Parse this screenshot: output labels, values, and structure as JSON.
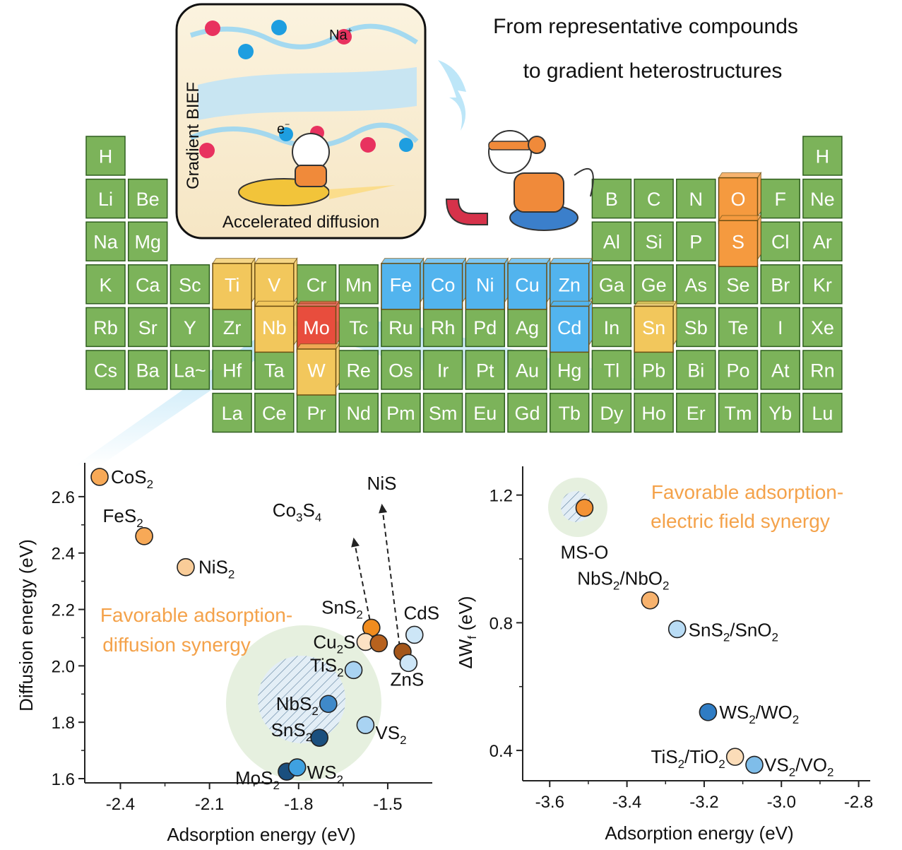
{
  "headline": {
    "line1": "From representative compounds",
    "line2": "to gradient heterostructures"
  },
  "inset": {
    "vertical_label": "Gradient BIEF",
    "bottom_label": "Accelerated diffusion",
    "ion_label": "Na",
    "ion_charge": "+",
    "electron_label": "e",
    "electron_charge": "−"
  },
  "colors": {
    "cell_green": "#7cb35a",
    "cell_green_border": "#2f5e1f",
    "transition_yellow": "#f2c75c",
    "transition_blue": "#52b4ee",
    "mo_red": "#e84d3d",
    "chalcogen_orange": "#f59a3f",
    "text_orange": "#f4a24a"
  },
  "periodic_table": {
    "cells": [
      {
        "symbol": "H",
        "col": 1,
        "row": 1
      },
      {
        "symbol": "H",
        "col": 18,
        "row": 1
      },
      {
        "symbol": "Li",
        "col": 1,
        "row": 2
      },
      {
        "symbol": "Be",
        "col": 2,
        "row": 2
      },
      {
        "symbol": "B",
        "col": 13,
        "row": 2
      },
      {
        "symbol": "C",
        "col": 14,
        "row": 2
      },
      {
        "symbol": "N",
        "col": 15,
        "row": 2
      },
      {
        "symbol": "O",
        "col": 16,
        "row": 2,
        "highlight": "orange"
      },
      {
        "symbol": "F",
        "col": 17,
        "row": 2
      },
      {
        "symbol": "Ne",
        "col": 18,
        "row": 2
      },
      {
        "symbol": "Na",
        "col": 1,
        "row": 3
      },
      {
        "symbol": "Mg",
        "col": 2,
        "row": 3
      },
      {
        "symbol": "Al",
        "col": 13,
        "row": 3
      },
      {
        "symbol": "Si",
        "col": 14,
        "row": 3
      },
      {
        "symbol": "P",
        "col": 15,
        "row": 3
      },
      {
        "symbol": "S",
        "col": 16,
        "row": 3,
        "highlight": "orange"
      },
      {
        "symbol": "Cl",
        "col": 17,
        "row": 3
      },
      {
        "symbol": "Ar",
        "col": 18,
        "row": 3
      },
      {
        "symbol": "K",
        "col": 1,
        "row": 4
      },
      {
        "symbol": "Ca",
        "col": 2,
        "row": 4
      },
      {
        "symbol": "Sc",
        "col": 3,
        "row": 4
      },
      {
        "symbol": "Ti",
        "col": 4,
        "row": 4,
        "highlight": "yellow"
      },
      {
        "symbol": "V",
        "col": 5,
        "row": 4,
        "highlight": "yellow"
      },
      {
        "symbol": "Cr",
        "col": 6,
        "row": 4
      },
      {
        "symbol": "Mn",
        "col": 7,
        "row": 4
      },
      {
        "symbol": "Fe",
        "col": 8,
        "row": 4,
        "highlight": "blue"
      },
      {
        "symbol": "Co",
        "col": 9,
        "row": 4,
        "highlight": "blue"
      },
      {
        "symbol": "Ni",
        "col": 10,
        "row": 4,
        "highlight": "blue"
      },
      {
        "symbol": "Cu",
        "col": 11,
        "row": 4,
        "highlight": "blue"
      },
      {
        "symbol": "Zn",
        "col": 12,
        "row": 4,
        "highlight": "blue"
      },
      {
        "symbol": "Ga",
        "col": 13,
        "row": 4
      },
      {
        "symbol": "Ge",
        "col": 14,
        "row": 4
      },
      {
        "symbol": "As",
        "col": 15,
        "row": 4
      },
      {
        "symbol": "Se",
        "col": 16,
        "row": 4
      },
      {
        "symbol": "Br",
        "col": 17,
        "row": 4
      },
      {
        "symbol": "Kr",
        "col": 18,
        "row": 4
      },
      {
        "symbol": "Rb",
        "col": 1,
        "row": 5
      },
      {
        "symbol": "Sr",
        "col": 2,
        "row": 5
      },
      {
        "symbol": "Y",
        "col": 3,
        "row": 5
      },
      {
        "symbol": "Zr",
        "col": 4,
        "row": 5
      },
      {
        "symbol": "Nb",
        "col": 5,
        "row": 5,
        "highlight": "yellow"
      },
      {
        "symbol": "Mo",
        "col": 6,
        "row": 5,
        "highlight": "red"
      },
      {
        "symbol": "Tc",
        "col": 7,
        "row": 5
      },
      {
        "symbol": "Ru",
        "col": 8,
        "row": 5
      },
      {
        "symbol": "Rh",
        "col": 9,
        "row": 5
      },
      {
        "symbol": "Pd",
        "col": 10,
        "row": 5
      },
      {
        "symbol": "Ag",
        "col": 11,
        "row": 5
      },
      {
        "symbol": "Cd",
        "col": 12,
        "row": 5,
        "highlight": "blue"
      },
      {
        "symbol": "In",
        "col": 13,
        "row": 5
      },
      {
        "symbol": "Sn",
        "col": 14,
        "row": 5,
        "highlight": "yellow"
      },
      {
        "symbol": "Sb",
        "col": 15,
        "row": 5
      },
      {
        "symbol": "Te",
        "col": 16,
        "row": 5
      },
      {
        "symbol": "I",
        "col": 17,
        "row": 5
      },
      {
        "symbol": "Xe",
        "col": 18,
        "row": 5
      },
      {
        "symbol": "Cs",
        "col": 1,
        "row": 6
      },
      {
        "symbol": "Ba",
        "col": 2,
        "row": 6
      },
      {
        "symbol": "La~",
        "col": 3,
        "row": 6
      },
      {
        "symbol": "Hf",
        "col": 4,
        "row": 6
      },
      {
        "symbol": "Ta",
        "col": 5,
        "row": 6
      },
      {
        "symbol": "W",
        "col": 6,
        "row": 6,
        "highlight": "yellow"
      },
      {
        "symbol": "Re",
        "col": 7,
        "row": 6
      },
      {
        "symbol": "Os",
        "col": 8,
        "row": 6
      },
      {
        "symbol": "Ir",
        "col": 9,
        "row": 6
      },
      {
        "symbol": "Pt",
        "col": 10,
        "row": 6
      },
      {
        "symbol": "Au",
        "col": 11,
        "row": 6
      },
      {
        "symbol": "Hg",
        "col": 12,
        "row": 6
      },
      {
        "symbol": "Tl",
        "col": 13,
        "row": 6
      },
      {
        "symbol": "Pb",
        "col": 14,
        "row": 6
      },
      {
        "symbol": "Bi",
        "col": 15,
        "row": 6
      },
      {
        "symbol": "Po",
        "col": 16,
        "row": 6
      },
      {
        "symbol": "At",
        "col": 17,
        "row": 6
      },
      {
        "symbol": "Rn",
        "col": 18,
        "row": 6
      },
      {
        "symbol": "La",
        "col": 4,
        "row": 7
      },
      {
        "symbol": "Ce",
        "col": 5,
        "row": 7
      },
      {
        "symbol": "Pr",
        "col": 6,
        "row": 7
      },
      {
        "symbol": "Nd",
        "col": 7,
        "row": 7
      },
      {
        "symbol": "Pm",
        "col": 8,
        "row": 7
      },
      {
        "symbol": "Sm",
        "col": 9,
        "row": 7
      },
      {
        "symbol": "Eu",
        "col": 10,
        "row": 7
      },
      {
        "symbol": "Gd",
        "col": 11,
        "row": 7
      },
      {
        "symbol": "Tb",
        "col": 12,
        "row": 7
      },
      {
        "symbol": "Dy",
        "col": 13,
        "row": 7
      },
      {
        "symbol": "Ho",
        "col": 14,
        "row": 7
      },
      {
        "symbol": "Er",
        "col": 15,
        "row": 7
      },
      {
        "symbol": "Tm",
        "col": 16,
        "row": 7
      },
      {
        "symbol": "Yb",
        "col": 17,
        "row": 7
      },
      {
        "symbol": "Lu",
        "col": 18,
        "row": 7
      }
    ]
  },
  "chart_data": [
    {
      "type": "scatter",
      "xlabel": "Adsorption energy (eV)",
      "ylabel": "Diffusion energy (eV)",
      "xlim": [
        -2.52,
        -1.35
      ],
      "ylim": [
        1.585,
        2.72
      ],
      "xticks": [
        -2.4,
        -2.1,
        -1.8,
        -1.5
      ],
      "yticks": [
        1.6,
        1.8,
        2.0,
        2.2,
        2.4,
        2.6
      ],
      "tick_labels_x": [
        "-2.4",
        "-2.1",
        "-1.8",
        "-1.5"
      ],
      "tick_labels_y": [
        "1.6",
        "1.8",
        "2.0",
        "2.2",
        "2.4",
        "2.6"
      ],
      "annotation_lines": [
        "Favorable adsorption-",
        "diffusion synergy"
      ],
      "points": [
        {
          "base": "CoS",
          "sub": "2",
          "x": -2.47,
          "y": 2.67,
          "color": "#f7a957"
        },
        {
          "base": "FeS",
          "sub": "2",
          "x": -2.32,
          "y": 2.46,
          "color": "#f7a957"
        },
        {
          "base": "NiS",
          "sub": "2",
          "x": -2.18,
          "y": 2.35,
          "color": "#f9cc98"
        },
        {
          "base": "SnS",
          "sub": "2",
          "x": -1.555,
          "y": 2.135,
          "color": "#f08c1e"
        },
        {
          "base": "Cu",
          "sub": "2",
          "base2": "S",
          "x": -1.575,
          "y": 2.085,
          "color": "#fde2c4"
        },
        {
          "base": "",
          "sub": "",
          "x": -1.53,
          "y": 2.08,
          "color": "#b8621e"
        },
        {
          "base": "",
          "sub": "",
          "x": -1.45,
          "y": 2.05,
          "color": "#a4561a"
        },
        {
          "base": "CdS",
          "sub": "",
          "x": -1.41,
          "y": 2.11,
          "color": "#cde6f7"
        },
        {
          "base": "ZnS",
          "sub": "",
          "x": -1.43,
          "y": 2.01,
          "color": "#cde6f7"
        },
        {
          "base": "TiS",
          "sub": "2",
          "x": -1.615,
          "y": 1.985,
          "color": "#a9d3f2"
        },
        {
          "base": "NbS",
          "sub": "2",
          "x": -1.7,
          "y": 1.865,
          "color": "#3f89c9"
        },
        {
          "base": "VS",
          "sub": "2",
          "x": -1.575,
          "y": 1.79,
          "color": "#a9d3f2"
        },
        {
          "base": "SnS",
          "sub": "2",
          "x": -1.73,
          "y": 1.745,
          "color": "#1a4f7e"
        },
        {
          "base": "MoS",
          "sub": "2",
          "x": -1.84,
          "y": 1.625,
          "color": "#1a4f7e"
        },
        {
          "base": "WS",
          "sub": "2",
          "x": -1.805,
          "y": 1.64,
          "color": "#3fa1e0"
        }
      ],
      "arrows": [
        {
          "label_parts": [
            {
              "t": "Co"
            },
            {
              "t": "3",
              "sub": true
            },
            {
              "t": "S"
            },
            {
              "t": "4",
              "sub": true
            }
          ],
          "from": [
            -1.555,
            2.135
          ],
          "to": [
            -1.615,
            2.455
          ]
        },
        {
          "label_parts": [
            {
              "t": "NiS"
            }
          ],
          "from": [
            -1.46,
            2.07
          ],
          "to": [
            -1.52,
            2.575
          ]
        }
      ]
    },
    {
      "type": "scatter",
      "xlabel": "Adsorption energy (eV)",
      "ylabel_base": "ΔW",
      "ylabel_sub": "f",
      "ylabel_unit": " (eV)",
      "xlim": [
        -3.67,
        -2.77
      ],
      "ylim": [
        0.305,
        1.29
      ],
      "xticks": [
        -3.6,
        -3.4,
        -3.2,
        -3.0,
        -2.8
      ],
      "yticks": [
        0.4,
        0.8,
        1.2
      ],
      "tick_labels_x": [
        "-3.6",
        "-3.4",
        "-3.2",
        "-3.0",
        "-2.8"
      ],
      "tick_labels_y": [
        "0.4",
        "0.8",
        "1.2"
      ],
      "annotation_lines": [
        "Favorable adsorption-",
        "electric field synergy"
      ],
      "points": [
        {
          "label": "MS-O",
          "x": -3.51,
          "y": 1.16,
          "color": "#f39234"
        },
        {
          "label_parts": [
            {
              "t": "NbS"
            },
            {
              "t": "2",
              "sub": true
            },
            {
              "t": "/NbO"
            },
            {
              "t": "2",
              "sub": true
            }
          ],
          "x": -3.34,
          "y": 0.87,
          "color": "#f7b26d"
        },
        {
          "label_parts": [
            {
              "t": "SnS"
            },
            {
              "t": "2",
              "sub": true
            },
            {
              "t": "/SnO"
            },
            {
              "t": "2",
              "sub": true
            }
          ],
          "x": -3.27,
          "y": 0.78,
          "color": "#b9dcf5"
        },
        {
          "label_parts": [
            {
              "t": "WS"
            },
            {
              "t": "2",
              "sub": true
            },
            {
              "t": "/WO"
            },
            {
              "t": "2",
              "sub": true
            }
          ],
          "x": -3.19,
          "y": 0.52,
          "color": "#2f7cc4"
        },
        {
          "label_parts": [
            {
              "t": "TiS"
            },
            {
              "t": "2",
              "sub": true
            },
            {
              "t": "/TiO"
            },
            {
              "t": "2",
              "sub": true
            }
          ],
          "x": -3.12,
          "y": 0.38,
          "color": "#fbdcb8"
        },
        {
          "label_parts": [
            {
              "t": "VS"
            },
            {
              "t": "2",
              "sub": true
            },
            {
              "t": "/VO"
            },
            {
              "t": "2",
              "sub": true
            }
          ],
          "x": -3.07,
          "y": 0.355,
          "color": "#7fbde9"
        }
      ]
    }
  ]
}
